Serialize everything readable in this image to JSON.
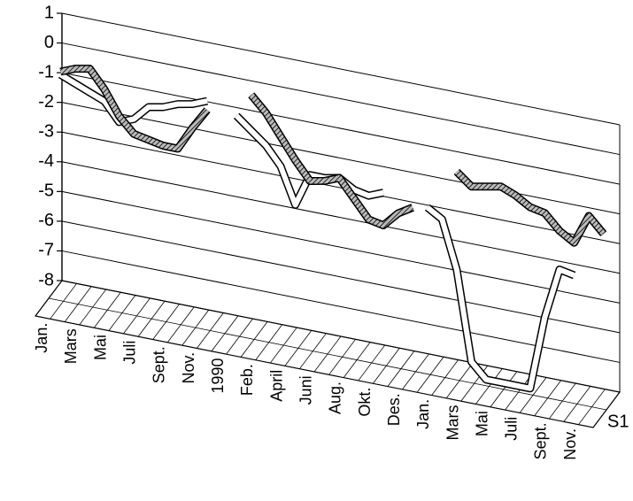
{
  "chart_data": {
    "type": "line3d",
    "categories": [
      "Jan.",
      null,
      "Mars",
      null,
      "Mai",
      null,
      "Juli",
      null,
      "Sept.",
      null,
      "Nov.",
      null,
      "1990",
      null,
      "Feb.",
      null,
      "April",
      null,
      "Juni",
      null,
      "Aug.",
      null,
      "Okt.",
      null,
      "Des.",
      null,
      "Jan.",
      null,
      "Mars",
      null,
      "Mai",
      null,
      "Juli",
      null,
      "Sept.",
      null,
      "Nov.",
      null
    ],
    "series": [
      {
        "name": "S1",
        "color": "#555555",
        "values": [
          -0.5,
          -0.3,
          -0.2,
          -0.8,
          -1.6,
          -2.1,
          -2.2,
          -2.3,
          -2.3,
          -1.5,
          -0.8,
          null,
          null,
          0,
          -0.5,
          -1.2,
          -1.9,
          -2.5,
          -2.4,
          -2.2,
          -2.8,
          -3.4,
          -3.5,
          -3,
          -2.7,
          null,
          null,
          -1.2,
          -1.6,
          -1.5,
          -1.4,
          -1.6,
          -1.9,
          -2,
          -2.5,
          -2.8,
          -1.8,
          -2.3
        ]
      },
      {
        "color": "#ffffff",
        "values": [
          -0.6,
          -0.8,
          -1,
          -1.2,
          -1.8,
          -1.6,
          -1.1,
          -1,
          -0.8,
          -0.7,
          -0.5,
          null,
          -0.8,
          -1.2,
          -1.6,
          -2.2,
          -3.4,
          -2.3,
          -2.3,
          -2.2,
          -2.5,
          -2.6,
          -2.4,
          null,
          null,
          -2.6,
          -2.9,
          -4.5,
          -7.5,
          -8,
          -8,
          -8,
          -8,
          -5.5,
          -3.8,
          -3.9,
          null,
          null
        ]
      }
    ],
    "ylim": [
      -8,
      1
    ],
    "yticks": [
      -8,
      -7,
      -6,
      -5,
      -4,
      -3,
      -2,
      -1,
      0,
      1
    ],
    "grid": true
  }
}
